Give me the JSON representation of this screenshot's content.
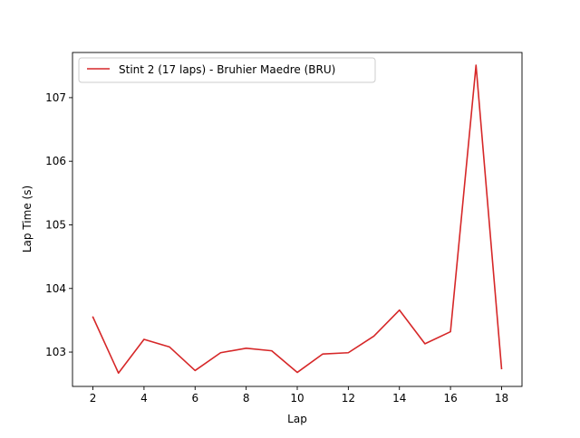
{
  "chart_data": {
    "type": "line",
    "title": "",
    "xlabel": "Lap",
    "ylabel": "Lap Time (s)",
    "xlim": [
      1.2,
      18.8
    ],
    "ylim": [
      102.46,
      107.71
    ],
    "x_ticks": [
      2,
      4,
      6,
      8,
      10,
      12,
      14,
      16,
      18
    ],
    "y_ticks": [
      103,
      104,
      105,
      106,
      107
    ],
    "grid": false,
    "legend_position": "top-left",
    "series": [
      {
        "name": "Stint 2 (17 laps) - Bruhier Maedre (BRU)",
        "color": "#d62728",
        "x": [
          2,
          3,
          4,
          5,
          6,
          7,
          8,
          9,
          10,
          11,
          12,
          13,
          14,
          15,
          16,
          17,
          18
        ],
        "y": [
          103.55,
          102.67,
          103.2,
          103.08,
          102.71,
          102.99,
          103.06,
          103.02,
          102.68,
          102.97,
          102.99,
          103.25,
          103.66,
          103.13,
          103.32,
          107.51,
          102.74
        ]
      }
    ]
  }
}
